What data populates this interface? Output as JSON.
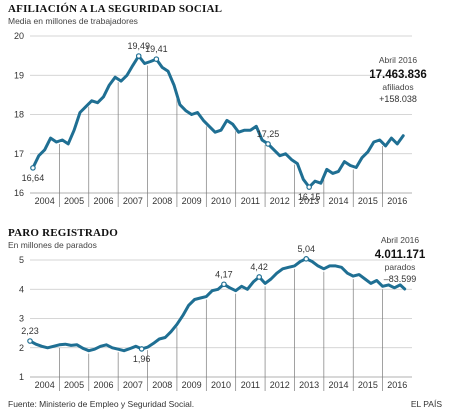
{
  "chart_data": [
    {
      "type": "line",
      "title": "AFILIACIÓN A LA SEGURIDAD SOCIAL",
      "subtitle": "Media en millones de trabajadores",
      "ylim": [
        16,
        20
      ],
      "yticks": [
        16,
        17,
        18,
        19,
        20
      ],
      "xlim": [
        2003.5,
        2016.5
      ],
      "year_labels": [
        "2004",
        "2005",
        "2006",
        "2007",
        "2008",
        "2009",
        "2010",
        "2011",
        "2012",
        "2013",
        "2014",
        "2015",
        "2016"
      ],
      "series": [
        {
          "x": [
            2003.6,
            2003.8,
            2004.0,
            2004.2,
            2004.4,
            2004.6,
            2004.8,
            2005.0,
            2005.2,
            2005.4,
            2005.6,
            2005.8,
            2006.0,
            2006.2,
            2006.4,
            2006.6,
            2006.8,
            2007.0,
            2007.2,
            2007.4,
            2007.6,
            2007.8,
            2008.0,
            2008.2,
            2008.4,
            2008.6,
            2008.8,
            2009.0,
            2009.2,
            2009.4,
            2009.6,
            2009.8,
            2010.0,
            2010.2,
            2010.4,
            2010.6,
            2010.8,
            2011.0,
            2011.2,
            2011.4,
            2011.6,
            2011.8,
            2012.0,
            2012.2,
            2012.4,
            2012.6,
            2012.8,
            2013.0,
            2013.2,
            2013.4,
            2013.6,
            2013.8,
            2014.0,
            2014.2,
            2014.4,
            2014.6,
            2014.8,
            2015.0,
            2015.2,
            2015.4,
            2015.6,
            2015.8,
            2016.0,
            2016.2
          ],
          "y": [
            16.64,
            16.95,
            17.1,
            17.4,
            17.3,
            17.35,
            17.25,
            17.6,
            18.05,
            18.2,
            18.35,
            18.3,
            18.45,
            18.75,
            18.95,
            18.85,
            19.0,
            19.25,
            19.49,
            19.3,
            19.35,
            19.41,
            19.2,
            19.1,
            18.75,
            18.25,
            18.1,
            18.0,
            18.05,
            17.85,
            17.7,
            17.55,
            17.6,
            17.85,
            17.75,
            17.55,
            17.6,
            17.6,
            17.7,
            17.35,
            17.25,
            17.1,
            16.95,
            17.0,
            16.85,
            16.75,
            16.35,
            16.15,
            16.3,
            16.25,
            16.6,
            16.5,
            16.55,
            16.8,
            16.7,
            16.65,
            16.9,
            17.05,
            17.3,
            17.35,
            17.2,
            17.4,
            17.25,
            17.46
          ]
        }
      ],
      "annotations": [
        {
          "label": "16,64",
          "x": 2003.6,
          "y": 16.64
        },
        {
          "label": "19,49",
          "x": 2007.2,
          "y": 19.49
        },
        {
          "label": "19,41",
          "x": 2007.8,
          "y": 19.41
        },
        {
          "label": "17,25",
          "x": 2011.6,
          "y": 17.25
        },
        {
          "label": "16,15",
          "x": 2013.0,
          "y": 16.15
        }
      ],
      "latest": {
        "date": "Abril 2016",
        "value": "17.463.836",
        "unit": "afiliados",
        "change": "+158.038"
      }
    },
    {
      "type": "line",
      "title": "PARO REGISTRADO",
      "subtitle": "En millones de parados",
      "ylim": [
        1,
        5
      ],
      "yticks": [
        1,
        2,
        3,
        4,
        5
      ],
      "xlim": [
        2003.5,
        2016.5
      ],
      "year_labels": [
        "2004",
        "2005",
        "2006",
        "2007",
        "2008",
        "2009",
        "2010",
        "2011",
        "2012",
        "2013",
        "2014",
        "2015",
        "2016"
      ],
      "series": [
        {
          "x": [
            2003.5,
            2003.7,
            2003.9,
            2004.1,
            2004.3,
            2004.5,
            2004.7,
            2004.9,
            2005.1,
            2005.3,
            2005.5,
            2005.7,
            2005.9,
            2006.1,
            2006.3,
            2006.5,
            2006.7,
            2006.9,
            2007.1,
            2007.3,
            2007.5,
            2007.7,
            2007.9,
            2008.1,
            2008.3,
            2008.5,
            2008.7,
            2008.9,
            2009.1,
            2009.3,
            2009.5,
            2009.7,
            2009.9,
            2010.1,
            2010.3,
            2010.5,
            2010.7,
            2010.9,
            2011.1,
            2011.3,
            2011.5,
            2011.7,
            2011.9,
            2012.1,
            2012.3,
            2012.5,
            2012.7,
            2012.9,
            2013.1,
            2013.3,
            2013.5,
            2013.7,
            2013.9,
            2014.1,
            2014.3,
            2014.5,
            2014.7,
            2014.9,
            2015.1,
            2015.3,
            2015.5,
            2015.7,
            2015.9,
            2016.1,
            2016.25
          ],
          "y": [
            2.23,
            2.12,
            2.05,
            2.0,
            2.05,
            2.1,
            2.12,
            2.08,
            2.1,
            1.98,
            1.9,
            1.95,
            2.05,
            2.1,
            2.0,
            1.95,
            1.9,
            1.97,
            2.05,
            1.96,
            2.02,
            2.15,
            2.3,
            2.35,
            2.55,
            2.8,
            3.1,
            3.45,
            3.65,
            3.7,
            3.75,
            3.95,
            4.0,
            4.17,
            4.05,
            3.95,
            4.1,
            4.0,
            4.25,
            4.42,
            4.2,
            4.35,
            4.55,
            4.7,
            4.75,
            4.8,
            4.95,
            5.04,
            4.95,
            4.8,
            4.7,
            4.8,
            4.8,
            4.75,
            4.55,
            4.45,
            4.5,
            4.35,
            4.2,
            4.3,
            4.1,
            4.15,
            4.05,
            4.15,
            4.01
          ]
        }
      ],
      "annotations": [
        {
          "label": "2,23",
          "x": 2003.5,
          "y": 2.23
        },
        {
          "label": "1,96",
          "x": 2007.3,
          "y": 1.96
        },
        {
          "label": "4,17",
          "x": 2010.1,
          "y": 4.17
        },
        {
          "label": "4,42",
          "x": 2011.3,
          "y": 4.42
        },
        {
          "label": "5,04",
          "x": 2012.9,
          "y": 5.04
        }
      ],
      "latest": {
        "date": "Abril 2016",
        "value": "4.011.171",
        "unit": "parados",
        "change": "–83.599"
      }
    }
  ],
  "footer": {
    "source": "Fuente: Ministerio de Empleo y Seguridad Social.",
    "credit": "EL PAÍS"
  },
  "colors": {
    "line": "#1f6f93",
    "grid": "#c8c8c8"
  }
}
